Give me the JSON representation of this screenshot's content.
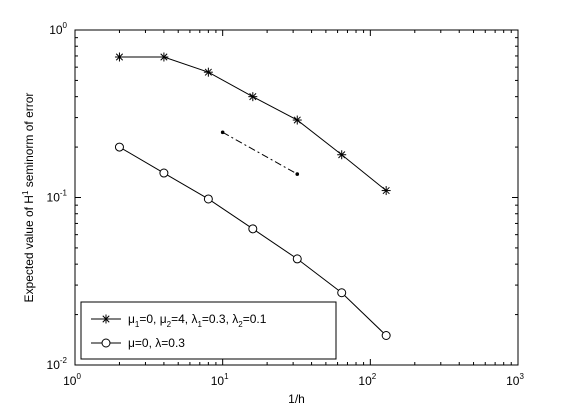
{
  "chart_data": {
    "type": "line",
    "x_scale": "log",
    "y_scale": "log",
    "xlim": [
      1,
      1000
    ],
    "ylim": [
      0.01,
      1
    ],
    "xlabel": "1/h",
    "ylabel": {
      "before": "Expected value of H",
      "superscript": "1",
      "after": " seminorm of error"
    },
    "x_ticks": [
      {
        "base": "10",
        "exp": "0",
        "value": 1
      },
      {
        "base": "10",
        "exp": "1",
        "value": 10
      },
      {
        "base": "10",
        "exp": "2",
        "value": 100
      },
      {
        "base": "10",
        "exp": "3",
        "value": 1000
      }
    ],
    "y_ticks": [
      {
        "base": "10",
        "exp": "-2",
        "value": 0.01
      },
      {
        "base": "10",
        "exp": "-1",
        "value": 0.1
      },
      {
        "base": "10",
        "exp": "0",
        "value": 1
      }
    ],
    "series": [
      {
        "marker": "star",
        "x": [
          2,
          4,
          8,
          16,
          32,
          64,
          128
        ],
        "y": [
          0.69,
          0.69,
          0.56,
          0.4,
          0.29,
          0.18,
          0.11
        ],
        "legend": [
          {
            "t": "μ",
            "s": false
          },
          {
            "t": "1",
            "s": true
          },
          {
            "t": "=0, μ",
            "s": false
          },
          {
            "t": "2",
            "s": true
          },
          {
            "t": "=4, λ",
            "s": false
          },
          {
            "t": "1",
            "s": true
          },
          {
            "t": "=0.3, λ",
            "s": false
          },
          {
            "t": "2",
            "s": true
          },
          {
            "t": "=0.1",
            "s": false
          }
        ]
      },
      {
        "marker": "circle",
        "x": [
          2,
          4,
          8,
          16,
          32,
          64,
          128
        ],
        "y": [
          0.2,
          0.14,
          0.098,
          0.065,
          0.043,
          0.027,
          0.015
        ],
        "legend": [
          {
            "t": "μ=0, λ=0.3",
            "s": false
          }
        ]
      }
    ],
    "reference_line": {
      "style": "dash-dot",
      "x": [
        10,
        32
      ],
      "y": [
        0.245,
        0.138
      ]
    },
    "grid": false,
    "legend_position": "bottom-left",
    "colors": {
      "line": "#000000",
      "background": "#ffffff"
    }
  }
}
